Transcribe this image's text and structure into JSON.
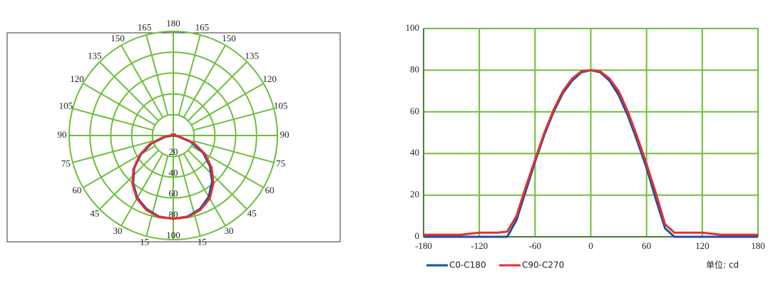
{
  "chart_data": [
    {
      "type": "polar",
      "rlim": [
        0,
        100
      ],
      "rticks": [
        20,
        40,
        60,
        80,
        100
      ],
      "thetaticks": [
        15,
        30,
        45,
        60,
        75,
        90,
        105,
        120,
        135,
        150,
        165,
        180
      ],
      "grid": true,
      "x": [
        -180,
        -170,
        -160,
        -150,
        -140,
        -130,
        -120,
        -110,
        -100,
        -90,
        -80,
        -70,
        -60,
        -50,
        -40,
        -30,
        -20,
        -10,
        0,
        10,
        20,
        30,
        40,
        50,
        60,
        70,
        80,
        90,
        100,
        110,
        120,
        130,
        140,
        150,
        160,
        170,
        180
      ],
      "series": [
        {
          "color": "#1f4fa0",
          "values": [
            0,
            0,
            0,
            0,
            0,
            0,
            0,
            0,
            0,
            0,
            8,
            22,
            36,
            49,
            60,
            69,
            75,
            79,
            80,
            79,
            75,
            68,
            58,
            46,
            33,
            18,
            4,
            0,
            0,
            0,
            0,
            0,
            0,
            0,
            0,
            0,
            0
          ]
        },
        {
          "color": "#e53030",
          "values": [
            1,
            1,
            1,
            1,
            1,
            1.5,
            2,
            2,
            2,
            2.5,
            10,
            24,
            37,
            50,
            61,
            70,
            76,
            79.5,
            80,
            79.5,
            76,
            70,
            60,
            48,
            35,
            21,
            6,
            2,
            2,
            2,
            2,
            1.5,
            1,
            1,
            1,
            1,
            1
          ]
        }
      ]
    },
    {
      "type": "line",
      "xlim": [
        -180,
        180
      ],
      "xticks": [
        -180,
        -120,
        -60,
        0,
        60,
        120,
        180
      ],
      "ylim": [
        0,
        100
      ],
      "yticks": [
        0,
        20,
        40,
        60,
        80,
        100
      ],
      "grid": true,
      "unit_label": "单位:  cd",
      "x": [
        -180,
        -170,
        -160,
        -150,
        -140,
        -130,
        -120,
        -110,
        -100,
        -90,
        -80,
        -70,
        -60,
        -50,
        -40,
        -30,
        -20,
        -10,
        0,
        10,
        20,
        30,
        40,
        50,
        60,
        70,
        80,
        90,
        100,
        110,
        120,
        130,
        140,
        150,
        160,
        170,
        180
      ],
      "series": [
        {
          "name": "C0-C180",
          "color": "#1f4fa0",
          "values": [
            0,
            0,
            0,
            0,
            0,
            0,
            0,
            0,
            0,
            0,
            8,
            22,
            36,
            49,
            60,
            69,
            75,
            79,
            80,
            79,
            75,
            68,
            58,
            46,
            33,
            18,
            4,
            0,
            0,
            0,
            0,
            0,
            0,
            0,
            0,
            0,
            0
          ]
        },
        {
          "name": "C90-C270",
          "color": "#e53030",
          "values": [
            1,
            1,
            1,
            1,
            1,
            1.5,
            2,
            2,
            2,
            2.5,
            10,
            24,
            37,
            50,
            61,
            70,
            76,
            79.5,
            80,
            79.5,
            76,
            70,
            60,
            48,
            35,
            21,
            6,
            2,
            2,
            2,
            2,
            1.5,
            1,
            1,
            1,
            1,
            1
          ]
        }
      ]
    }
  ]
}
